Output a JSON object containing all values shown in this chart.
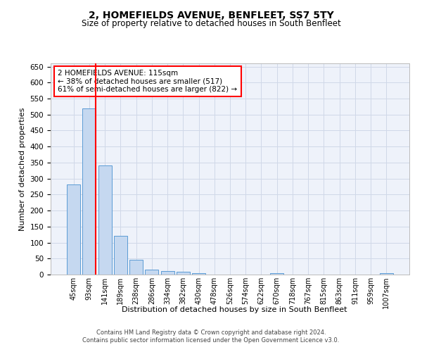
{
  "title": "2, HOMEFIELDS AVENUE, BENFLEET, SS7 5TY",
  "subtitle": "Size of property relative to detached houses in South Benfleet",
  "xlabel": "Distribution of detached houses by size in South Benfleet",
  "ylabel": "Number of detached properties",
  "categories": [
    "45sqm",
    "93sqm",
    "141sqm",
    "189sqm",
    "238sqm",
    "286sqm",
    "334sqm",
    "382sqm",
    "430sqm",
    "478sqm",
    "526sqm",
    "574sqm",
    "622sqm",
    "670sqm",
    "718sqm",
    "767sqm",
    "815sqm",
    "863sqm",
    "911sqm",
    "959sqm",
    "1007sqm"
  ],
  "values": [
    282,
    520,
    342,
    120,
    47,
    15,
    10,
    8,
    5,
    0,
    0,
    0,
    0,
    5,
    0,
    0,
    0,
    0,
    0,
    0,
    5
  ],
  "bar_color": "#c5d8f0",
  "bar_edge_color": "#5b9bd5",
  "vline_x": 1.425,
  "vline_color": "red",
  "annotation_text": "2 HOMEFIELDS AVENUE: 115sqm\n← 38% of detached houses are smaller (517)\n61% of semi-detached houses are larger (822) →",
  "annotation_box_color": "white",
  "annotation_box_edge_color": "red",
  "ylim": [
    0,
    660
  ],
  "yticks": [
    0,
    50,
    100,
    150,
    200,
    250,
    300,
    350,
    400,
    450,
    500,
    550,
    600,
    650
  ],
  "footer": "Contains HM Land Registry data © Crown copyright and database right 2024.\nContains public sector information licensed under the Open Government Licence v3.0.",
  "grid_color": "#d0d8e8",
  "background_color": "#eef2fa"
}
